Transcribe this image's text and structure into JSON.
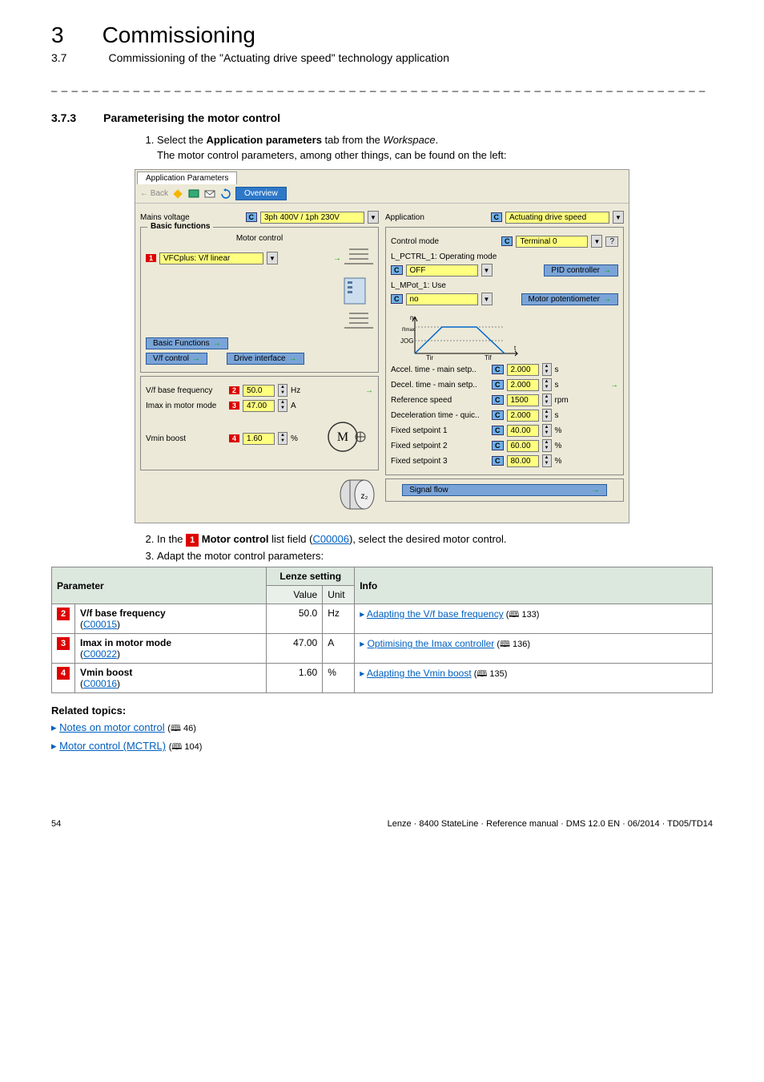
{
  "chapter": {
    "num": "3",
    "title": "Commissioning",
    "subnum": "3.7",
    "subtitle": "Commissioning of the \"Actuating drive speed\" technology application"
  },
  "dash_rule": "_ _ _ _ _ _ _ _ _ _ _ _ _ _ _ _ _ _ _ _ _ _ _ _ _ _ _ _ _ _ _ _ _ _ _ _ _ _ _ _ _ _ _ _ _ _ _ _ _ _ _ _ _ _ _ _ _ _ _ _ _ _ _ _",
  "section": {
    "num": "3.7.3",
    "title": "Parameterising the motor control"
  },
  "steps": {
    "s1a": "Select the ",
    "s1b": "Application parameters",
    "s1c": " tab from the ",
    "s1d": "Workspace",
    "s1e": ".",
    "s1sub": "The motor control parameters, among other things, can be found on the left:",
    "s2a": "In the ",
    "s2num": "1",
    "s2b": " Motor control",
    "s2c": " list field (",
    "s2link": "C00006",
    "s2d": "), select the desired motor control.",
    "s3": "Adapt the motor control parameters:"
  },
  "shot": {
    "tab": "Application Parameters",
    "back": "← Back",
    "overview": "Overview",
    "mains_label": "Mains voltage",
    "mains_value": "3ph 400V / 1ph 230V",
    "app_label": "Application",
    "app_value": "Actuating drive speed",
    "basic_legend": "Basic functions",
    "motor_control_label": "Motor control",
    "motor_control_value": "VFCplus: V/f linear",
    "control_mode_label": "Control mode",
    "control_mode_value": "Terminal 0",
    "pctrl_label": "L_PCTRL_1: Operating mode",
    "pctrl_value": "OFF",
    "pid_btn": "PID controller",
    "mpot_label": "L_MPot_1: Use",
    "mpot_value": "no",
    "mpot_btn": "Motor potentiometer",
    "basic_fn_btn": "Basic Functions",
    "vf_ctrl_btn": "V/f control",
    "drive_if_btn": "Drive interface",
    "vf_base_label": "V/f base frequency",
    "vf_base_value": "50.0",
    "vf_base_unit": "Hz",
    "imax_label": "Imax in motor mode",
    "imax_value": "47.00",
    "imax_unit": "A",
    "vmin_label": "Vmin boost",
    "vmin_value": "1.60",
    "vmin_unit": "%",
    "graph": {
      "nmax": "n",
      "nmax_sub": "max",
      "jog": "JOG",
      "tir": "Tir",
      "tif": "Tif",
      "t": "t"
    },
    "accel_label": "Accel. time - main setp..",
    "accel_value": "2.000",
    "accel_unit": "s",
    "decel_label": "Decel. time - main setp..",
    "decel_value": "2.000",
    "decel_unit": "s",
    "ref_label": "Reference speed",
    "ref_value": "1500",
    "ref_unit": "rpm",
    "decq_label": "Deceleration time - quic..",
    "decq_value": "2.000",
    "decq_unit": "s",
    "fs1_label": "Fixed setpoint 1",
    "fs1_value": "40.00",
    "fs1_unit": "%",
    "fs2_label": "Fixed setpoint 2",
    "fs2_value": "60.00",
    "fs2_unit": "%",
    "fs3_label": "Fixed setpoint 3",
    "fs3_value": "80.00",
    "fs3_unit": "%",
    "sigflow_btn": "Signal flow",
    "num1": "1",
    "num2": "2",
    "num3": "3",
    "num4": "4",
    "c": "C",
    "q": "?",
    "motor_m": "M"
  },
  "table": {
    "h_param": "Parameter",
    "h_lenze": "Lenze setting",
    "h_info": "Info",
    "h_value": "Value",
    "h_unit": "Unit",
    "rows": [
      {
        "n": "2",
        "name": "V/f base frequency",
        "code": "C00015",
        "value": "50.0",
        "unit": "Hz",
        "info": "Adapting the V/f base frequency",
        "page": "133"
      },
      {
        "n": "3",
        "name": "Imax in motor mode",
        "code": "C00022",
        "value": "47.00",
        "unit": "A",
        "info": "Optimising the Imax controller",
        "page": "136"
      },
      {
        "n": "4",
        "name": "Vmin boost",
        "code": "C00016",
        "value": "1.60",
        "unit": "%",
        "info": "Adapting the Vmin boost",
        "page": "135"
      }
    ]
  },
  "related": {
    "heading": "Related topics:",
    "items": [
      {
        "text": "Notes on motor control",
        "page": "46"
      },
      {
        "text": " Motor control (MCTRL)",
        "page": "104"
      }
    ]
  },
  "footer": {
    "page": "54",
    "meta": "Lenze · 8400 StateLine · Reference manual · DMS 12.0 EN · 06/2014 · TD05/TD14"
  },
  "glyph": {
    "tri": "▸",
    "book": "🕮",
    "paren_open": " (",
    "paren_close": ")",
    "code_open": "(",
    "code_close": ")"
  }
}
